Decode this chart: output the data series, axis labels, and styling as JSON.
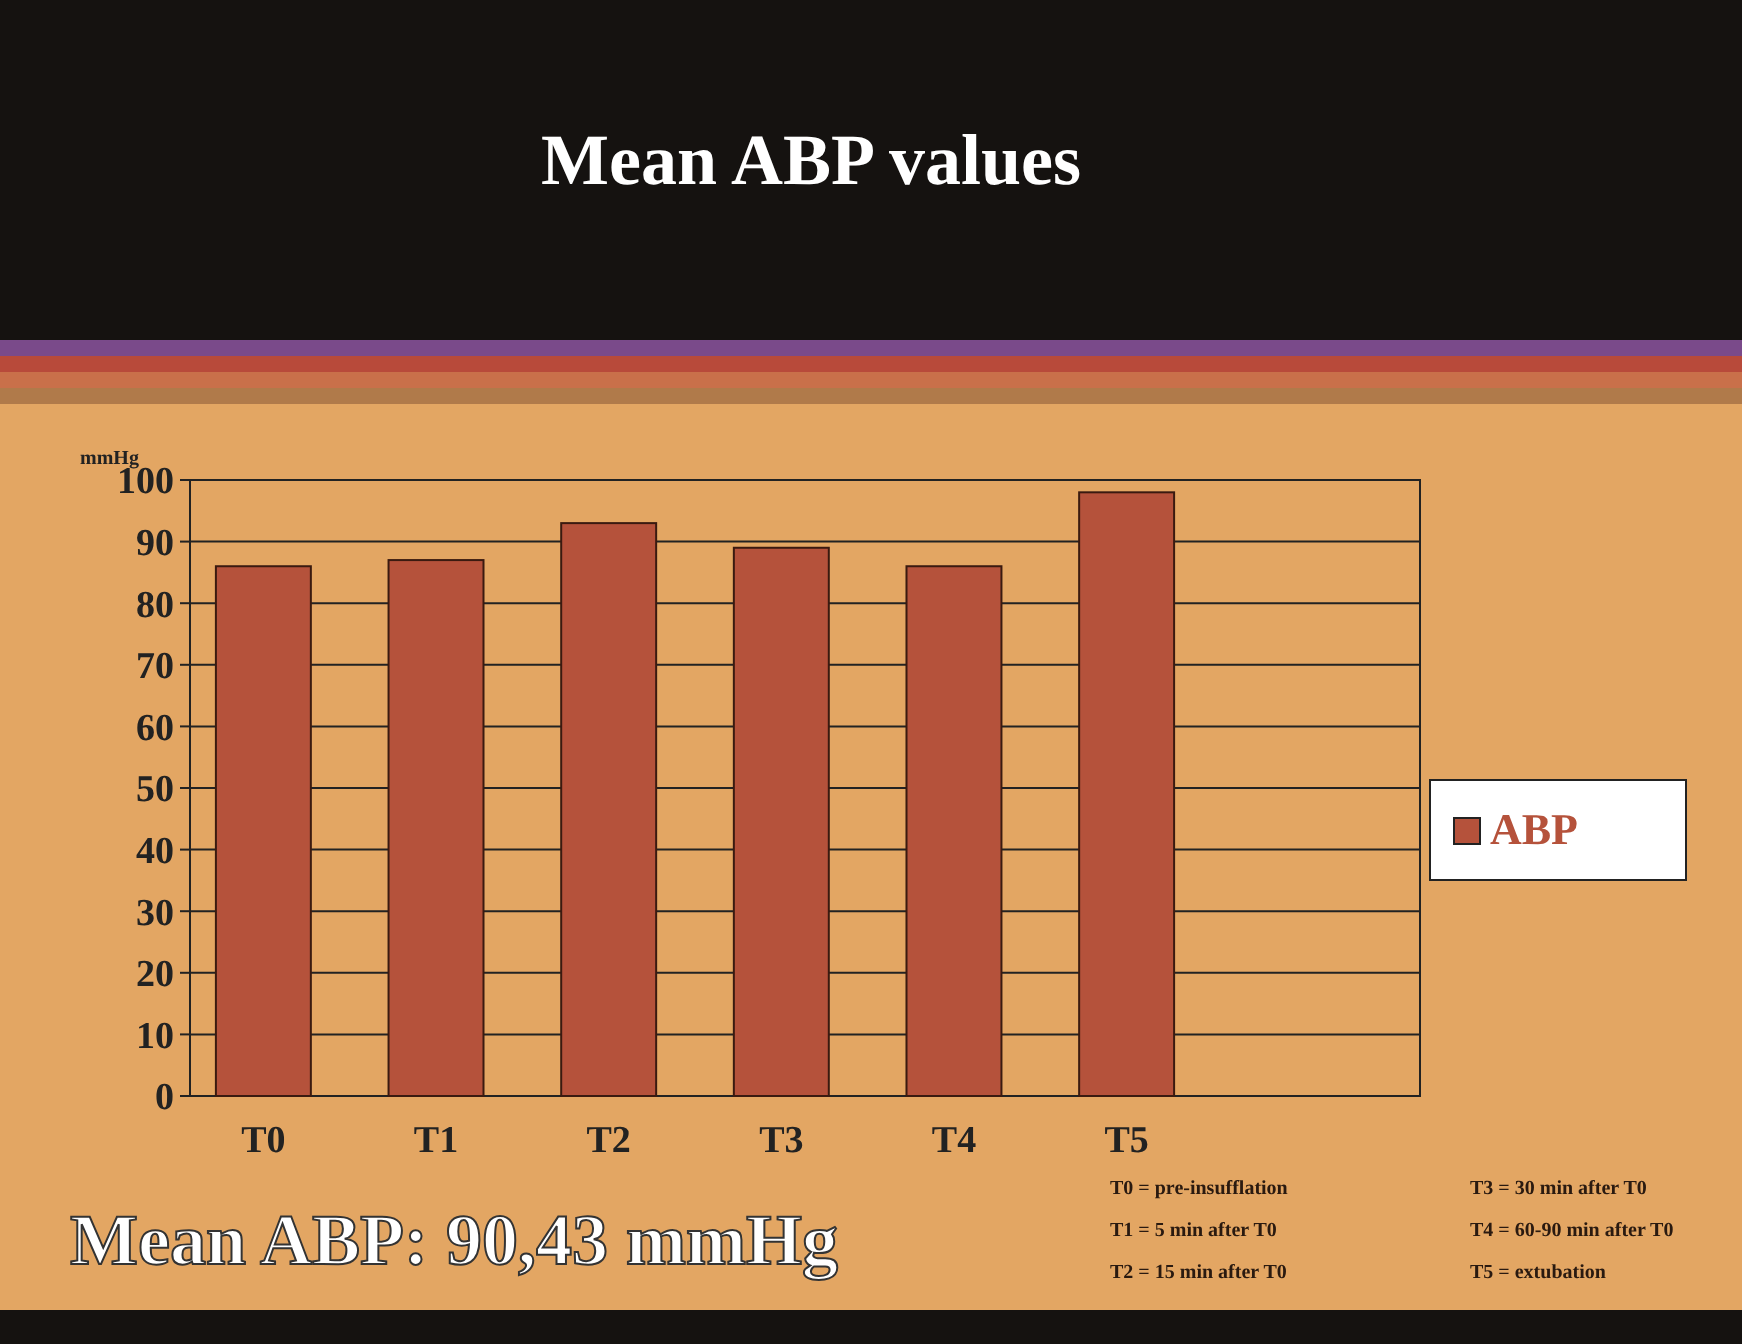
{
  "chart_data": {
    "type": "bar",
    "title": "Mean ABP values",
    "ylabel": "mmHg",
    "categories": [
      "T0",
      "T1",
      "T2",
      "T3",
      "T4",
      "T5"
    ],
    "series": [
      {
        "name": "ABP",
        "color": "#b5523b",
        "values": [
          86,
          87,
          93,
          89,
          86,
          98
        ]
      }
    ],
    "ylim": [
      0,
      100
    ],
    "yticks": [
      0,
      10,
      20,
      30,
      40,
      50,
      60,
      70,
      80,
      90,
      100
    ],
    "grid": "y",
    "legend": "right",
    "annotations": [
      "Mean ABP: 90,43 mmHg",
      "T0 = pre-insufflation",
      "T1 = 5 min after T0",
      "T2 = 15 min after T0",
      "T3 = 30 min after T0",
      "T4 = 60-90 min after T0",
      "T5 = extubation"
    ]
  }
}
